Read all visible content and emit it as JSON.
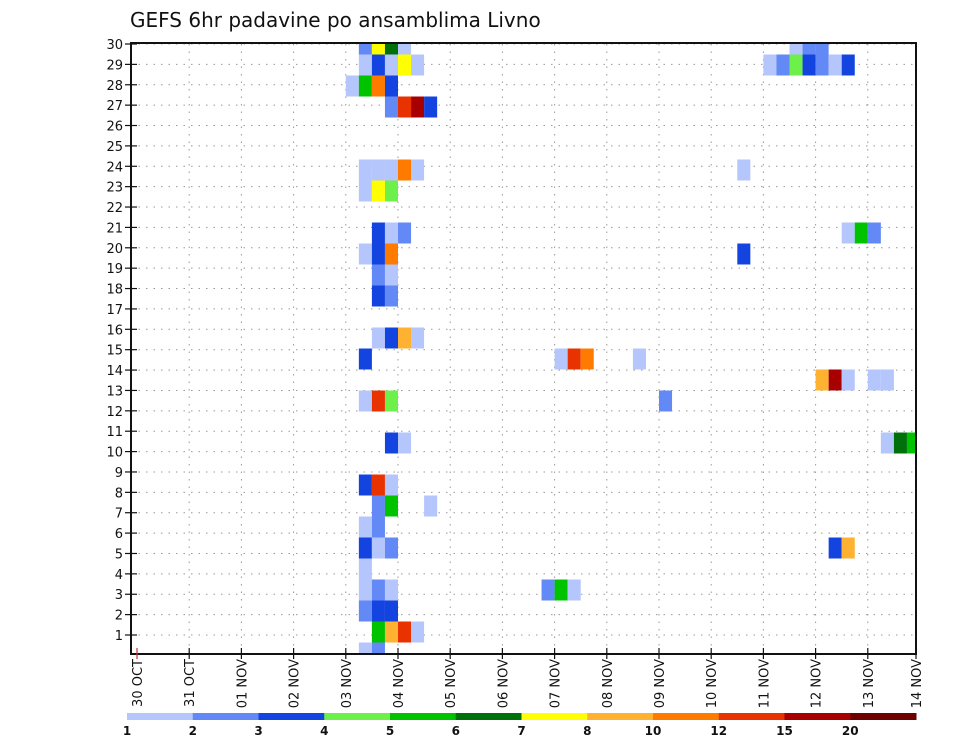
{
  "chart_data": {
    "type": "heatmap",
    "title": "GEFS 6hr padavine po ansamblima Livno",
    "xlabel": "",
    "ylabel": "",
    "x_tick_labels": [
      "30 OCT",
      "31 OCT",
      "01 NOV",
      "02 NOV",
      "03 NOV",
      "04 NOV",
      "05 NOV",
      "06 NOV",
      "07 NOV",
      "08 NOV",
      "09 NOV",
      "10 NOV",
      "11 NOV",
      "12 NOV",
      "13 NOV",
      "14 NOV"
    ],
    "x_step_hours": 6,
    "x_range_steps": [
      0,
      60
    ],
    "y_tick_labels": [
      "1",
      "2",
      "3",
      "4",
      "5",
      "6",
      "7",
      "8",
      "9",
      "10",
      "11",
      "12",
      "13",
      "14",
      "15",
      "16",
      "17",
      "18",
      "19",
      "20",
      "21",
      "22",
      "23",
      "24",
      "25",
      "26",
      "27",
      "28",
      "29",
      "30"
    ],
    "y_range": [
      1,
      30
    ],
    "grid": true,
    "colorbar": {
      "placement": "bottom",
      "labels": [
        "1",
        "2",
        "3",
        "4",
        "5",
        "6",
        "7",
        "8",
        "10",
        "12",
        "15",
        "20"
      ],
      "colors": [
        "#b4c6fb",
        "#6389f6",
        "#1444e0",
        "#6ef04a",
        "#00c300",
        "#00700a",
        "#ffff00",
        "#ffb232",
        "#ff7b00",
        "#e83200",
        "#a80000",
        "#6e0000"
      ]
    },
    "cells_format": "[member, 6h step index from 30 OCT 00Z, colour bin index (0 = 1-2 ... 11 = >20)]",
    "cells": [
      [
        30,
        17,
        1
      ],
      [
        30,
        18,
        6
      ],
      [
        30,
        19,
        5
      ],
      [
        30,
        20,
        0
      ],
      [
        30,
        50,
        0
      ],
      [
        30,
        51,
        1
      ],
      [
        30,
        52,
        1
      ],
      [
        29,
        17,
        0
      ],
      [
        29,
        18,
        2
      ],
      [
        29,
        19,
        0
      ],
      [
        29,
        20,
        6
      ],
      [
        29,
        21,
        0
      ],
      [
        29,
        48,
        0
      ],
      [
        29,
        49,
        1
      ],
      [
        29,
        50,
        3
      ],
      [
        29,
        51,
        2
      ],
      [
        29,
        52,
        1
      ],
      [
        29,
        53,
        0
      ],
      [
        29,
        54,
        2
      ],
      [
        28,
        16,
        0
      ],
      [
        28,
        17,
        4
      ],
      [
        28,
        18,
        8
      ],
      [
        28,
        19,
        2
      ],
      [
        27,
        19,
        1
      ],
      [
        27,
        20,
        9
      ],
      [
        27,
        21,
        10
      ],
      [
        27,
        22,
        2
      ],
      [
        24,
        17,
        0
      ],
      [
        24,
        18,
        0
      ],
      [
        24,
        19,
        0
      ],
      [
        24,
        20,
        8
      ],
      [
        24,
        21,
        0
      ],
      [
        24,
        46,
        0
      ],
      [
        23,
        17,
        0
      ],
      [
        23,
        18,
        6
      ],
      [
        23,
        19,
        3
      ],
      [
        21,
        18,
        2
      ],
      [
        21,
        19,
        0
      ],
      [
        21,
        20,
        1
      ],
      [
        21,
        54,
        0
      ],
      [
        21,
        55,
        4
      ],
      [
        21,
        56,
        1
      ],
      [
        20,
        17,
        0
      ],
      [
        20,
        18,
        2
      ],
      [
        20,
        19,
        8
      ],
      [
        20,
        46,
        2
      ],
      [
        19,
        18,
        1
      ],
      [
        19,
        19,
        0
      ],
      [
        18,
        18,
        2
      ],
      [
        18,
        19,
        1
      ],
      [
        16,
        18,
        0
      ],
      [
        16,
        19,
        2
      ],
      [
        16,
        20,
        7
      ],
      [
        16,
        21,
        0
      ],
      [
        15,
        17,
        2
      ],
      [
        15,
        32,
        0
      ],
      [
        15,
        33,
        9
      ],
      [
        15,
        34,
        8
      ],
      [
        15,
        38,
        0
      ],
      [
        14,
        52,
        7
      ],
      [
        14,
        53,
        10
      ],
      [
        14,
        54,
        0
      ],
      [
        14,
        56,
        0
      ],
      [
        14,
        57,
        0
      ],
      [
        13,
        17,
        0
      ],
      [
        13,
        18,
        9
      ],
      [
        13,
        19,
        3
      ],
      [
        13,
        40,
        1
      ],
      [
        11,
        19,
        2
      ],
      [
        11,
        20,
        0
      ],
      [
        11,
        57,
        0
      ],
      [
        11,
        58,
        5
      ],
      [
        11,
        59,
        4
      ],
      [
        9,
        17,
        2
      ],
      [
        9,
        18,
        9
      ],
      [
        9,
        19,
        0
      ],
      [
        8,
        18,
        1
      ],
      [
        8,
        19,
        4
      ],
      [
        8,
        22,
        0
      ],
      [
        7,
        17,
        0
      ],
      [
        7,
        18,
        1
      ],
      [
        6,
        17,
        2
      ],
      [
        6,
        18,
        0
      ],
      [
        6,
        19,
        1
      ],
      [
        6,
        53,
        2
      ],
      [
        6,
        54,
        7
      ],
      [
        5,
        17,
        0
      ],
      [
        4,
        17,
        0
      ],
      [
        4,
        18,
        1
      ],
      [
        4,
        19,
        0
      ],
      [
        4,
        31,
        1
      ],
      [
        4,
        32,
        4
      ],
      [
        4,
        33,
        0
      ],
      [
        3,
        17,
        1
      ],
      [
        3,
        18,
        2
      ],
      [
        3,
        19,
        2
      ],
      [
        2,
        18,
        4
      ],
      [
        2,
        19,
        7
      ],
      [
        2,
        20,
        9
      ],
      [
        2,
        21,
        0
      ],
      [
        1,
        17,
        0
      ],
      [
        1,
        18,
        1
      ]
    ]
  }
}
